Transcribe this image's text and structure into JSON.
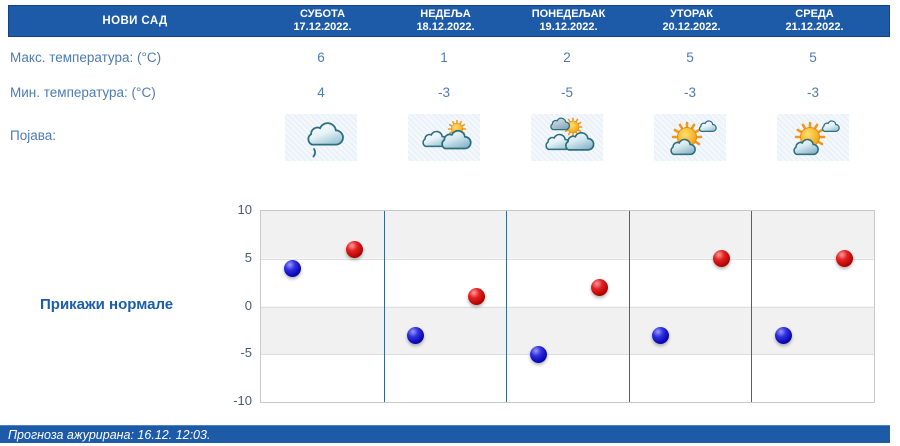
{
  "location": "НОВИ САД",
  "columns": [
    {
      "day": "СУБОТА",
      "date": "17.12.2022.",
      "max": "6",
      "min": "4",
      "icon": "cloud-drizzle"
    },
    {
      "day": "НЕДЕЉА",
      "date": "18.12.2022.",
      "max": "1",
      "min": "-3",
      "icon": "sun-behind-clouds"
    },
    {
      "day": "ПОНЕДЕЉАК",
      "date": "19.12.2022.",
      "max": "2",
      "min": "-5",
      "icon": "sun-above-clouds"
    },
    {
      "day": "УТОРАК",
      "date": "20.12.2022.",
      "max": "5",
      "min": "-3",
      "icon": "sun-with-small-clouds"
    },
    {
      "day": "СРЕДА",
      "date": "21.12.2022.",
      "max": "5",
      "min": "-3",
      "icon": "sun-with-small-clouds"
    }
  ],
  "rows": {
    "max_label": "Макс. температура: (°C)",
    "min_label": "Мин. температура: (°C)",
    "phenomenon_label": "Појава:"
  },
  "normals_button": "Прикажи нормале",
  "footer": {
    "text": "Прогноза ажурирана:  16.12. 12:03."
  },
  "colors": {
    "header_bg": "#1d5ba9",
    "body_text": "#4d7bb5",
    "min_dot_blue": "#0a0abb",
    "max_dot_red": "#cc1111",
    "day_separator": "#34679a",
    "band_gray": "#f1f1f1"
  },
  "chart_data": {
    "type": "scatter",
    "title": "",
    "xlabel": "",
    "ylabel": "",
    "categories": [
      "СУБОТА 17.12.2022.",
      "НЕДЕЉА 18.12.2022.",
      "ПОНЕДЕЉАК 19.12.2022.",
      "УТОРАК 20.12.2022.",
      "СРЕДА 21.12.2022."
    ],
    "series": [
      {
        "key": "min",
        "name": "Минимална температура (°C)",
        "color": "#0a0abb",
        "x_frac": 0.26,
        "values": [
          4,
          -3,
          -5,
          -3,
          -3
        ]
      },
      {
        "key": "max",
        "name": "Максимална температура (°C)",
        "color": "#cc1111",
        "x_frac": 0.76,
        "values": [
          6,
          1,
          2,
          5,
          5
        ]
      }
    ],
    "ylim": [
      -10,
      10
    ],
    "yticks": [
      10,
      5,
      0,
      -5,
      -10
    ],
    "grid": "horizontal-bands-every-5",
    "legend": "none"
  }
}
